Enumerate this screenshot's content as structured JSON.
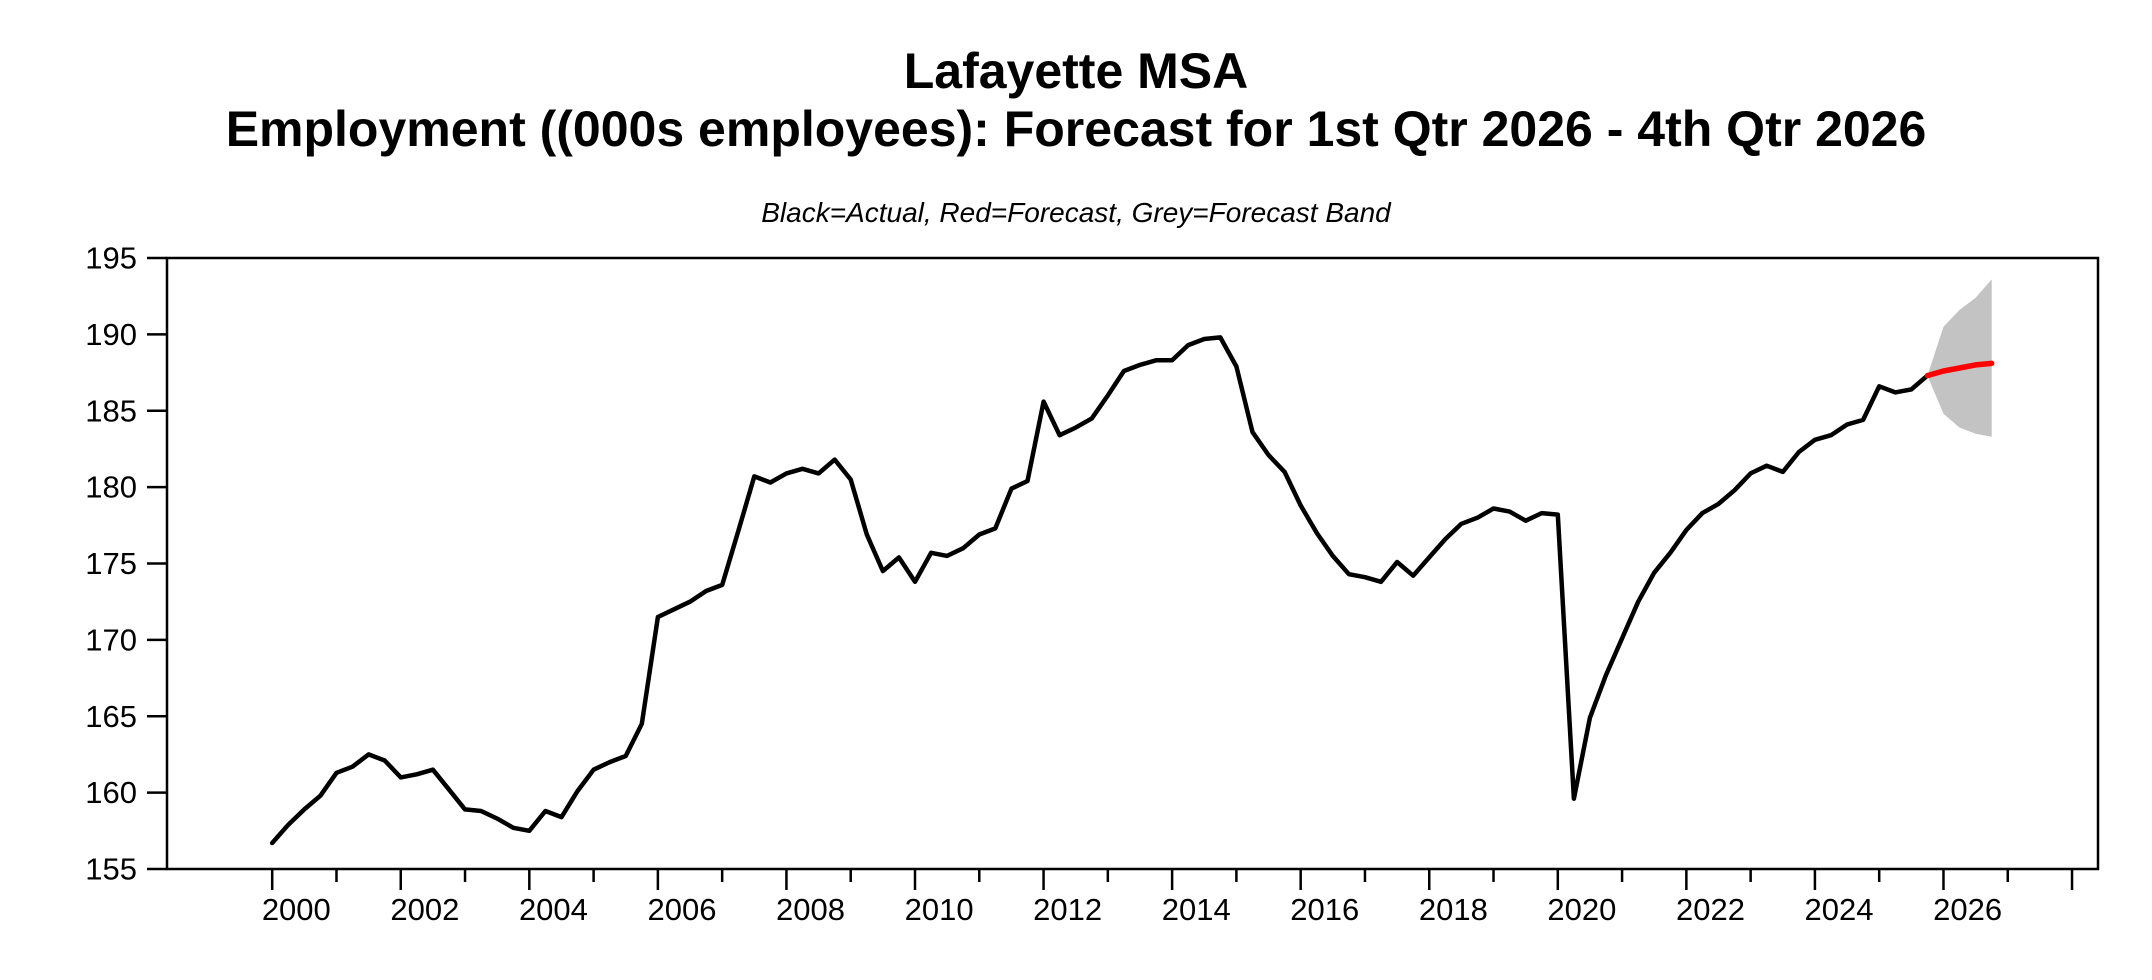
{
  "header": {
    "title_line1": "Lafayette MSA",
    "title_line2": "Employment ((000s employees): Forecast for 1st Qtr 2026 - 4th Qtr 2026",
    "subtitle": "Black=Actual, Red=Forecast, Grey=Forecast Band"
  },
  "chart_data": {
    "type": "line",
    "title": "Lafayette MSA",
    "subtitle": "Employment ((000s employees): Forecast for 1st Qtr 2026 - 4th Qtr 2026",
    "legend_note": "Black=Actual, Red=Forecast, Grey=Forecast Band",
    "frequency": "quarterly",
    "xlabel": "",
    "ylabel": "",
    "grid": "off",
    "legend_position": "none (color-coded subtitle)",
    "colors": {
      "actual": "#000000",
      "forecast": "#ff0000",
      "band": "#c3c3c3",
      "axis": "#000000"
    },
    "y_axis": {
      "min": 155,
      "max": 195,
      "tick_step": 5,
      "ticks": [
        155,
        160,
        165,
        170,
        175,
        180,
        185,
        190,
        195
      ]
    },
    "x_axis": {
      "min": 1998.35,
      "max": 2028.4,
      "tick_years_start": 2000,
      "tick_years_end": 2028,
      "label_years": [
        2000,
        2002,
        2004,
        2006,
        2008,
        2010,
        2012,
        2014,
        2016,
        2018,
        2020,
        2022,
        2024,
        2026
      ],
      "label_offset_years": 0.375
    },
    "series": [
      {
        "name": "Actual",
        "color": "#000000",
        "start": 2000.0,
        "start_period": "2000Q1",
        "end_period": "2025Q4",
        "step": 0.25,
        "values": [
          156.7,
          157.9,
          158.9,
          159.8,
          161.3,
          161.7,
          162.5,
          162.1,
          161.0,
          161.2,
          161.5,
          160.2,
          158.9,
          158.8,
          158.3,
          157.7,
          157.5,
          158.8,
          158.4,
          160.1,
          161.5,
          162.0,
          162.4,
          164.5,
          171.5,
          172.0,
          172.5,
          173.2,
          173.6,
          177.1,
          180.7,
          180.3,
          180.9,
          181.2,
          180.9,
          181.8,
          180.5,
          176.9,
          174.5,
          175.4,
          173.8,
          175.7,
          175.5,
          176.0,
          176.9,
          177.3,
          179.9,
          180.4,
          185.6,
          183.4,
          183.9,
          184.5,
          186.0,
          187.6,
          188.0,
          188.3,
          188.3,
          189.3,
          189.7,
          189.8,
          187.9,
          183.6,
          182.1,
          181.0,
          178.8,
          177.0,
          175.5,
          174.3,
          174.1,
          173.8,
          175.1,
          174.2,
          175.4,
          176.6,
          177.6,
          178.0,
          178.6,
          178.4,
          177.8,
          178.3,
          178.2,
          159.6,
          164.9,
          167.7,
          170.1,
          172.5,
          174.4,
          175.7,
          177.2,
          178.3,
          178.9,
          179.8,
          180.9,
          181.4,
          181.0,
          182.3,
          183.1,
          183.4,
          184.1,
          184.4,
          186.6,
          186.2,
          186.4,
          187.3
        ]
      },
      {
        "name": "Forecast",
        "color": "#ff0000",
        "start": 2025.75,
        "start_period": "2025Q4 (junction with actual)",
        "end_period": "2026Q4",
        "step": 0.25,
        "values": [
          187.3,
          187.6,
          187.8,
          188.0,
          188.1
        ]
      }
    ],
    "forecast_band": {
      "name": "Forecast Band",
      "color": "#c3c3c3",
      "anchor_x": 2025.75,
      "anchor_value": 187.3,
      "x": [
        2026.0,
        2026.25,
        2026.5,
        2026.75
      ],
      "upper": [
        190.5,
        191.6,
        192.4,
        193.6
      ],
      "lower": [
        184.8,
        183.9,
        183.5,
        183.3
      ]
    }
  }
}
